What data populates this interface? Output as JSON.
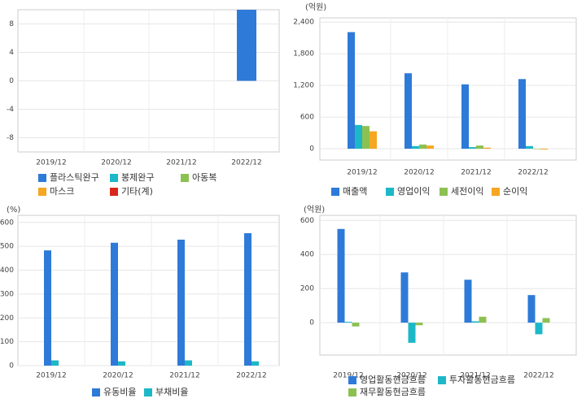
{
  "chart_data": [
    {
      "type": "bar",
      "categories": [
        "2019/12",
        "2020/12",
        "2021/12",
        "2022/12"
      ],
      "series": [
        {
          "name": "플라스틱완구",
          "color": "#2e7ad8",
          "values": [
            null,
            null,
            null,
            10
          ]
        },
        {
          "name": "봉제완구",
          "color": "#1cb8c8",
          "values": [
            null,
            null,
            null,
            null
          ]
        },
        {
          "name": "아동복",
          "color": "#8cc152",
          "values": [
            null,
            null,
            null,
            null
          ]
        },
        {
          "name": "마스크",
          "color": "#f5a623",
          "values": [
            null,
            null,
            null,
            null
          ]
        },
        {
          "name": "기타(계)",
          "color": "#d9261c",
          "values": [
            null,
            null,
            null,
            null
          ]
        }
      ],
      "ylim": [
        -10,
        10
      ],
      "yticks": [
        8,
        4,
        0,
        -4,
        -8
      ],
      "grid": true
    },
    {
      "type": "bar",
      "unit": "(억원)",
      "categories": [
        "2019/12",
        "2020/12",
        "2021/12",
        "2022/12"
      ],
      "series": [
        {
          "name": "매출액",
          "color": "#2e7ad8",
          "values": [
            2210,
            1430,
            1220,
            1320
          ]
        },
        {
          "name": "영업이익",
          "color": "#1cb8c8",
          "values": [
            450,
            50,
            30,
            50
          ]
        },
        {
          "name": "세전이익",
          "color": "#8cc152",
          "values": [
            430,
            80,
            60,
            0
          ]
        },
        {
          "name": "순이익",
          "color": "#f5a623",
          "values": [
            330,
            60,
            20,
            -15
          ]
        }
      ],
      "ylim": [
        -215,
        2480
      ],
      "yticks": [
        {
          "value": 2400,
          "label": "2,400"
        },
        {
          "value": 1800,
          "label": "1,800"
        },
        {
          "value": 1200,
          "label": "1,200"
        },
        600,
        0
      ],
      "grid": true
    },
    {
      "type": "bar",
      "unit": "(%)",
      "categories": [
        "2019/12",
        "2020/12",
        "2021/12",
        "2022/12"
      ],
      "series": [
        {
          "name": "유동비율",
          "color": "#2e7ad8",
          "values": [
            483,
            515,
            528,
            555
          ]
        },
        {
          "name": "부채비율",
          "color": "#1cb8c8",
          "values": [
            22,
            18,
            22,
            18
          ]
        }
      ],
      "ylim": [
        0,
        630
      ],
      "yticks": [
        600,
        500,
        400,
        300,
        200,
        100,
        0
      ],
      "grid": true
    },
    {
      "type": "bar",
      "unit": "(억원)",
      "categories": [
        "2019/12",
        "2020/12",
        "2021/12",
        "2022/12"
      ],
      "series": [
        {
          "name": "영업활동현금흐름",
          "color": "#2e7ad8",
          "values": [
            550,
            295,
            252,
            162
          ]
        },
        {
          "name": "투자활동현금흐름",
          "color": "#1cb8c8",
          "values": [
            5,
            -118,
            8,
            -68
          ]
        },
        {
          "name": "재무활동현금흐름",
          "color": "#8cc152",
          "values": [
            -22,
            -15,
            35,
            27
          ]
        }
      ],
      "ylim": [
        -190,
        630
      ],
      "yticks": [
        600,
        400,
        200,
        0
      ],
      "grid": true
    }
  ]
}
